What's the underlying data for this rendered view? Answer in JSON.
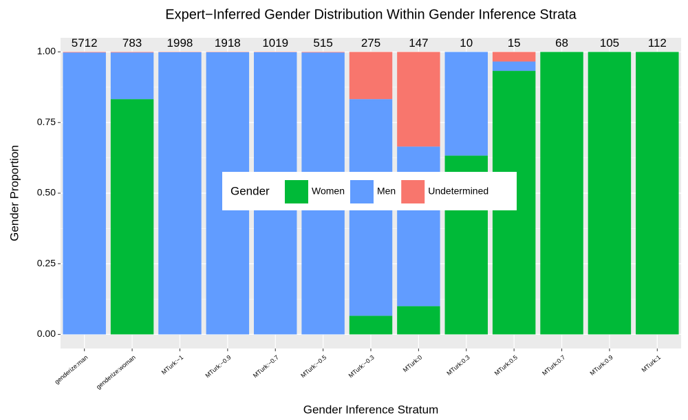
{
  "chart_data": {
    "type": "stacked_bar",
    "title": "Expert−Inferred Gender Distribution Within Gender Inference Strata",
    "x_label": "Gender Inference Stratum",
    "y_label": "Gender Proportion",
    "legend_title": "Gender",
    "categories": [
      "genderize:man",
      "genderize:woman",
      "MTurk:−1",
      "MTurk:−0.9",
      "MTurk:−0.7",
      "MTurk:−0.5",
      "MTurk:−0.3",
      "MTurk:0",
      "MTurk:0.3",
      "MTurk:0.5",
      "MTurk:0.7",
      "MTurk:0.9",
      "MTurk:1"
    ],
    "count_labels": [
      "5712",
      "783",
      "1998",
      "1918",
      "1019",
      "515",
      "275",
      "147",
      "10",
      "15",
      "68",
      "105",
      "112"
    ],
    "series": [
      {
        "name": "Women",
        "color": "#00ba38",
        "values": [
          0,
          0.833,
          0,
          0,
          0,
          0,
          0.066,
          0.1,
          0.633,
          0.933,
          1,
          1,
          1
        ]
      },
      {
        "name": "Men",
        "color": "#619cff",
        "values": [
          0.998,
          0.165,
          0.999,
          0.999,
          0.999,
          0.998,
          0.767,
          0.565,
          0.367,
          0.033,
          0,
          0,
          0
        ]
      },
      {
        "name": "Undetermined",
        "color": "#f8766d",
        "values": [
          0.002,
          0.002,
          0.001,
          0.001,
          0.001,
          0.002,
          0.167,
          0.335,
          0,
          0.034,
          0,
          0,
          0
        ]
      }
    ],
    "ylim": [
      -0.05,
      1.05
    ],
    "yticks": [
      {
        "value": 0,
        "label": "0.00"
      },
      {
        "value": 0.25,
        "label": "0.25"
      },
      {
        "value": 0.5,
        "label": "0.50"
      },
      {
        "value": 0.75,
        "label": "0.75"
      },
      {
        "value": 1,
        "label": "1.00"
      }
    ],
    "grid": true
  }
}
